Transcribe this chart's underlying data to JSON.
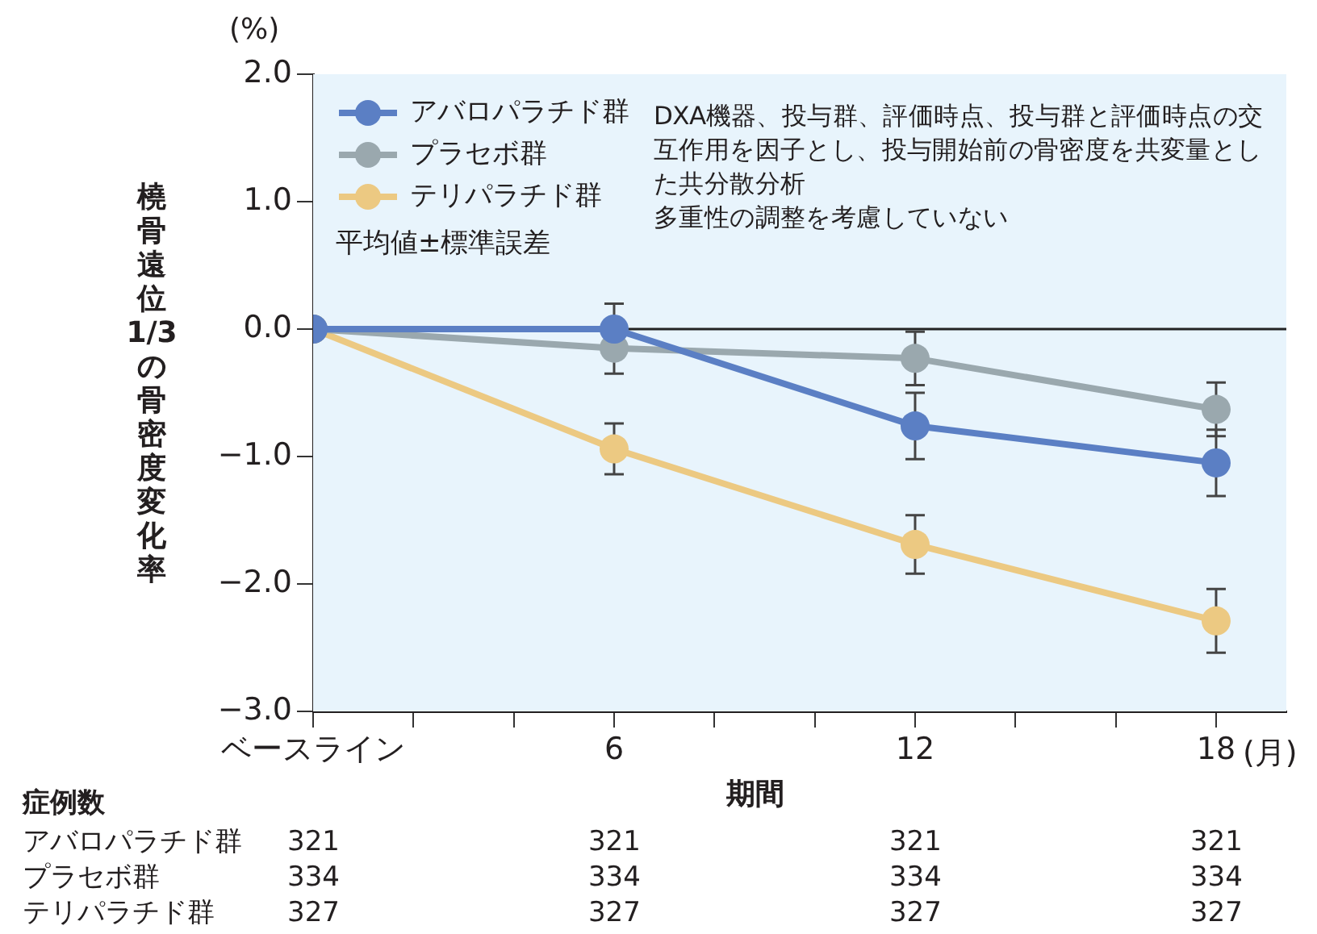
{
  "chart_data": {
    "type": "line",
    "xlabel": "期間",
    "ylabel": "橈骨遠位1/3の骨密度変化率",
    "x": [
      0,
      6,
      12,
      18
    ],
    "xlim": [
      0,
      19.4
    ],
    "xticks": [
      {
        "value": 0,
        "label": "ベースライン"
      },
      {
        "value": 2,
        "label": null
      },
      {
        "value": 4,
        "label": null
      },
      6,
      {
        "value": 8,
        "label": null
      },
      {
        "value": 10,
        "label": null
      },
      12,
      {
        "value": 14,
        "label": null
      },
      {
        "value": 16,
        "label": null
      },
      18
    ],
    "ylim": [
      -3,
      2
    ],
    "yticks": [
      {
        "value": -3,
        "label": "−3.0"
      },
      {
        "value": -2,
        "label": "−2.0"
      },
      {
        "value": -1,
        "label": "−1.0"
      },
      {
        "value": 0,
        "label": "0.0"
      },
      {
        "value": 1,
        "label": "1.0"
      },
      {
        "value": 2,
        "label": "2.0"
      }
    ],
    "series": [
      {
        "name": "アバロパラチド群",
        "color": "#5b7fc4",
        "values": [
          0,
          0,
          -0.76,
          -1.05
        ],
        "errors": [
          null,
          0.2,
          0.26,
          0.26
        ]
      },
      {
        "name": "プラセボ群",
        "color": "#9aa8ae",
        "values": [
          0,
          -0.15,
          -0.23,
          -0.63
        ],
        "errors": [
          null,
          0.2,
          0.21,
          0.21
        ]
      },
      {
        "name": "テリパラチド群",
        "color": "#ecc982",
        "values": [
          0,
          -0.94,
          -1.69,
          -2.29
        ],
        "errors": [
          null,
          0.2,
          0.23,
          0.25
        ]
      }
    ],
    "ref_lines": [
      {
        "axis": "y",
        "value": 0,
        "color": "#222222"
      }
    ],
    "marker": "circle",
    "grid": false,
    "legend": "top left",
    "annotations": [
      "(%)",
      "(月)",
      "平均値±標準誤差",
      "DXA機器、投与群、評価時点、投与群と評価時点の交互作用を因子とし、投与開始前の骨密度を共変量とした共分散分析",
      "多重性の調整を考慮していない",
      "症例数",
      "アバロパラチド群 321 321 321 321",
      "プラセボ群 334 334 334 334",
      "テリパラチド群 327 327 327 327"
    ]
  }
}
